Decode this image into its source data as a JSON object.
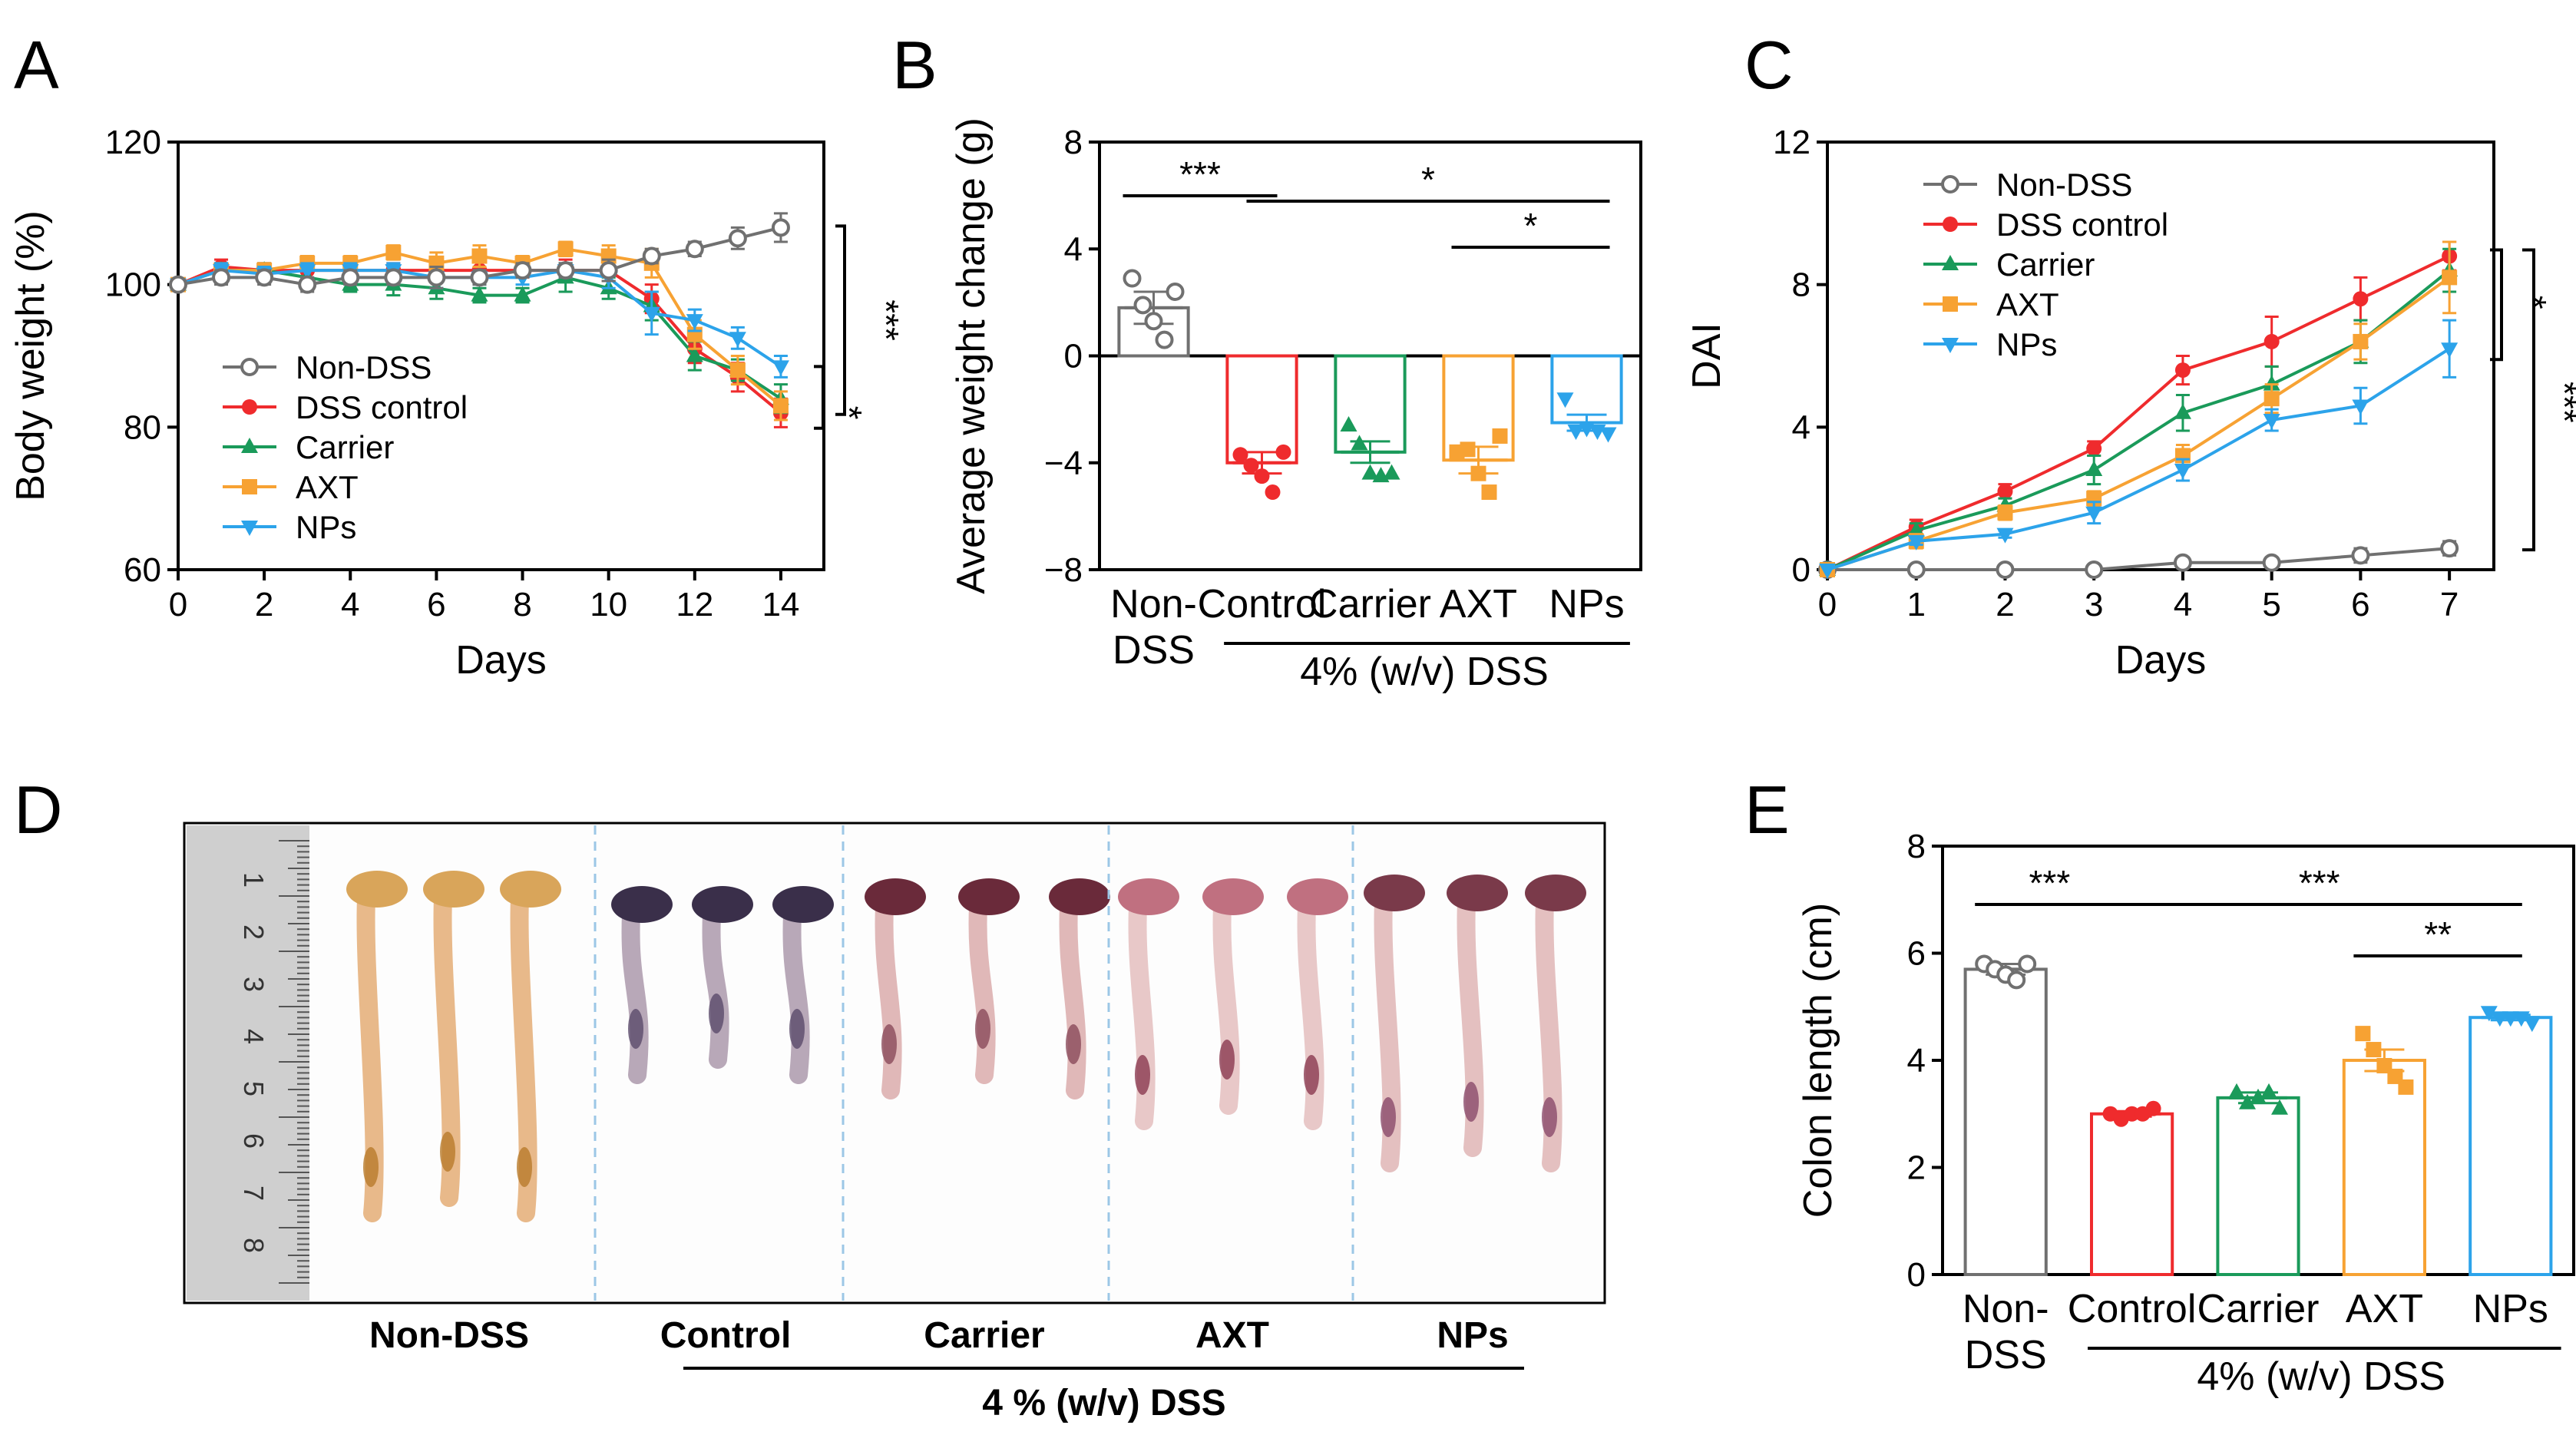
{
  "colors": {
    "nondss": "#707070",
    "dss": "#ef2b2d",
    "carrier": "#1a9a5a",
    "axt": "#f7a233",
    "nps": "#2ca3ea",
    "black": "#000000"
  },
  "panel_labels": {
    "a": "A",
    "b": "B",
    "c": "C",
    "d": "D",
    "e": "E"
  },
  "chart_data": [
    {
      "id": "A",
      "type": "line",
      "xlabel": "Days",
      "ylabel": "Body weight (%)",
      "xlim": [
        0,
        15
      ],
      "ylim": [
        60,
        120
      ],
      "xticks": [
        0,
        2,
        4,
        6,
        8,
        10,
        12,
        14
      ],
      "yticks": [
        60,
        80,
        100,
        120
      ],
      "legend_position": "bottom-left",
      "series": [
        {
          "name": "Non-DSS",
          "key": "nondss",
          "marker": "open-circle",
          "x": [
            0,
            1,
            2,
            3,
            4,
            5,
            6,
            7,
            8,
            9,
            10,
            11,
            12,
            13,
            14
          ],
          "values": [
            100,
            101,
            101,
            100,
            101,
            101,
            101,
            101,
            102,
            102,
            102,
            104,
            105,
            106.5,
            108
          ],
          "err": [
            0.5,
            1,
            1,
            1,
            1,
            1,
            1.5,
            1,
            1,
            1,
            1.5,
            1,
            1,
            1.5,
            2
          ]
        },
        {
          "name": "DSS control",
          "key": "dss",
          "marker": "circle",
          "x": [
            0,
            1,
            2,
            3,
            4,
            5,
            6,
            7,
            8,
            9,
            10,
            11,
            12,
            13,
            14
          ],
          "values": [
            100,
            102.5,
            102,
            102,
            102,
            102,
            102,
            102,
            102,
            102,
            102,
            98,
            91,
            87,
            82
          ],
          "err": [
            0.5,
            1,
            1,
            2,
            1.5,
            1,
            1.5,
            1.5,
            1,
            1.5,
            1.5,
            2,
            2,
            2,
            2
          ]
        },
        {
          "name": "Carrier",
          "key": "carrier",
          "marker": "triangle",
          "x": [
            0,
            1,
            2,
            3,
            4,
            5,
            6,
            7,
            8,
            9,
            10,
            11,
            12,
            13,
            14
          ],
          "values": [
            100,
            102,
            102,
            101,
            100,
            100,
            99.5,
            98.5,
            98.5,
            101,
            99.5,
            97,
            90,
            88,
            84
          ],
          "err": [
            0.5,
            1,
            1,
            1,
            1,
            1.5,
            1.5,
            1,
            1,
            2,
            1.5,
            2,
            2,
            1.5,
            2
          ]
        },
        {
          "name": "AXT",
          "key": "axt",
          "marker": "square",
          "x": [
            0,
            1,
            2,
            3,
            4,
            5,
            6,
            7,
            8,
            9,
            10,
            11,
            12,
            13,
            14
          ],
          "values": [
            100,
            102,
            102,
            103,
            103,
            104.5,
            103,
            104,
            103,
            105,
            104,
            103,
            93,
            88,
            83
          ],
          "err": [
            0.5,
            1,
            1,
            1,
            1,
            1,
            1.5,
            1.5,
            1,
            1,
            1.5,
            2,
            2,
            2,
            2
          ]
        },
        {
          "name": "NPs",
          "key": "nps",
          "marker": "inv-triangle",
          "x": [
            0,
            1,
            2,
            3,
            4,
            5,
            6,
            7,
            8,
            9,
            10,
            11,
            12,
            13,
            14
          ],
          "values": [
            100,
            102,
            101.5,
            102,
            102,
            102,
            101,
            101,
            101,
            102,
            101,
            96,
            95,
            92.5,
            88.5
          ],
          "err": [
            0.5,
            1,
            1,
            1,
            1,
            1,
            1.5,
            1,
            1,
            1,
            1.5,
            3,
            1.5,
            1.5,
            1.5
          ]
        }
      ],
      "significance": [
        {
          "label": "***"
        },
        {
          "label": "*"
        }
      ]
    },
    {
      "id": "B",
      "type": "bar",
      "ylabel": "Average weight change (g)",
      "ylim": [
        -8,
        8
      ],
      "yticks": [
        -8,
        -4,
        0,
        4,
        8
      ],
      "categories": [
        "Non-DSS",
        "Control",
        "Carrier",
        "AXT",
        "NPs"
      ],
      "category_lines": [
        [
          "Non-",
          "DSS"
        ],
        [
          "Control"
        ],
        [
          "Carrier"
        ],
        [
          "AXT"
        ],
        [
          "NPs"
        ]
      ],
      "keys": [
        "nondss",
        "dss",
        "carrier",
        "axt",
        "nps"
      ],
      "markers": [
        "open-circle",
        "circle",
        "triangle",
        "square",
        "inv-triangle"
      ],
      "values": [
        1.8,
        -4.0,
        -3.6,
        -3.9,
        -2.5
      ],
      "err": [
        0.6,
        0.4,
        0.4,
        0.5,
        0.3
      ],
      "points": [
        [
          2.9,
          1.9,
          1.3,
          0.6,
          2.4
        ],
        [
          -3.7,
          -4.1,
          -4.5,
          -5.1,
          -3.6
        ],
        [
          -2.6,
          -3.3,
          -4.4,
          -4.5,
          -4.4
        ],
        [
          -3.6,
          -3.5,
          -4.4,
          -5.1,
          -3.0
        ],
        [
          -1.6,
          -2.8,
          -2.7,
          -2.8,
          -2.9
        ]
      ],
      "group_label": "4% (w/v) DSS",
      "significance": [
        {
          "label": "***"
        },
        {
          "label": "*"
        },
        {
          "label": "*"
        }
      ]
    },
    {
      "id": "C",
      "type": "line",
      "xlabel": "Days",
      "ylabel": "DAI",
      "xlim": [
        0,
        7.5
      ],
      "ylim": [
        0,
        12
      ],
      "xticks": [
        0,
        1,
        2,
        3,
        4,
        5,
        6,
        7
      ],
      "yticks": [
        0,
        4,
        8,
        12
      ],
      "legend_position": "top-left",
      "series": [
        {
          "name": "Non-DSS",
          "key": "nondss",
          "marker": "open-circle",
          "x": [
            0,
            1,
            2,
            3,
            4,
            5,
            6,
            7
          ],
          "values": [
            0,
            0,
            0,
            0,
            0.2,
            0.2,
            0.4,
            0.6
          ],
          "err": [
            0,
            0,
            0,
            0,
            0.1,
            0.1,
            0.2,
            0.2
          ]
        },
        {
          "name": "DSS control",
          "key": "dss",
          "marker": "circle",
          "x": [
            0,
            1,
            2,
            3,
            4,
            5,
            6,
            7
          ],
          "values": [
            0,
            1.2,
            2.2,
            3.4,
            5.6,
            6.4,
            7.6,
            8.8
          ],
          "err": [
            0,
            0.2,
            0.2,
            0.2,
            0.4,
            0.7,
            0.6,
            0.4
          ]
        },
        {
          "name": "Carrier",
          "key": "carrier",
          "marker": "triangle",
          "x": [
            0,
            1,
            2,
            3,
            4,
            5,
            6,
            7
          ],
          "values": [
            0,
            1.1,
            1.8,
            2.8,
            4.4,
            5.2,
            6.4,
            8.4
          ],
          "err": [
            0,
            0.2,
            0.2,
            0.4,
            0.5,
            0.5,
            0.6,
            0.6
          ]
        },
        {
          "name": "AXT",
          "key": "axt",
          "marker": "square",
          "x": [
            0,
            1,
            2,
            3,
            4,
            5,
            6,
            7
          ],
          "values": [
            0,
            0.8,
            1.6,
            2.0,
            3.2,
            4.8,
            6.4,
            8.2
          ],
          "err": [
            0,
            0.2,
            0.2,
            0.2,
            0.3,
            0.4,
            0.5,
            1.0
          ]
        },
        {
          "name": "NPs",
          "key": "nps",
          "marker": "inv-triangle",
          "x": [
            0,
            1,
            2,
            3,
            4,
            5,
            6,
            7
          ],
          "values": [
            0,
            0.8,
            1.0,
            1.6,
            2.8,
            4.2,
            4.6,
            6.2
          ],
          "err": [
            0,
            0.1,
            0.1,
            0.3,
            0.3,
            0.3,
            0.5,
            0.8
          ]
        }
      ],
      "significance": [
        {
          "label": "*"
        },
        {
          "label": "***"
        }
      ]
    },
    {
      "id": "E",
      "type": "bar",
      "ylabel": "Colon length (cm)",
      "ylim": [
        0,
        8
      ],
      "yticks": [
        0,
        2,
        4,
        6,
        8
      ],
      "categories": [
        "Non-DSS",
        "Control",
        "Carrier",
        "AXT",
        "NPs"
      ],
      "category_lines": [
        [
          "Non-",
          "DSS"
        ],
        [
          "Control"
        ],
        [
          "Carrier"
        ],
        [
          "AXT"
        ],
        [
          "NPs"
        ]
      ],
      "keys": [
        "nondss",
        "dss",
        "carrier",
        "axt",
        "nps"
      ],
      "markers": [
        "open-circle",
        "circle",
        "triangle",
        "square",
        "inv-triangle"
      ],
      "values": [
        5.7,
        3.0,
        3.3,
        4.0,
        4.8
      ],
      "err": [
        0.1,
        0.05,
        0.1,
        0.2,
        0.05
      ],
      "points": [
        [
          5.8,
          5.7,
          5.6,
          5.5,
          5.8
        ],
        [
          3.0,
          2.9,
          3.0,
          3.0,
          3.1
        ],
        [
          3.4,
          3.2,
          3.3,
          3.4,
          3.1
        ],
        [
          4.5,
          4.2,
          3.9,
          3.7,
          3.5
        ],
        [
          4.9,
          4.8,
          4.8,
          4.8,
          4.7
        ]
      ],
      "group_label": "4% (w/v) DSS",
      "significance": [
        {
          "label": "***"
        },
        {
          "label": "***"
        },
        {
          "label": "**"
        }
      ]
    }
  ],
  "photo": {
    "labels": [
      "Non-DSS",
      "Control",
      "Carrier",
      "AXT",
      "NPs"
    ],
    "group_label": "4 % (w/v) DSS",
    "ruler_numbers": [
      "1",
      "2",
      "3",
      "4",
      "5",
      "6",
      "7",
      "8"
    ]
  }
}
